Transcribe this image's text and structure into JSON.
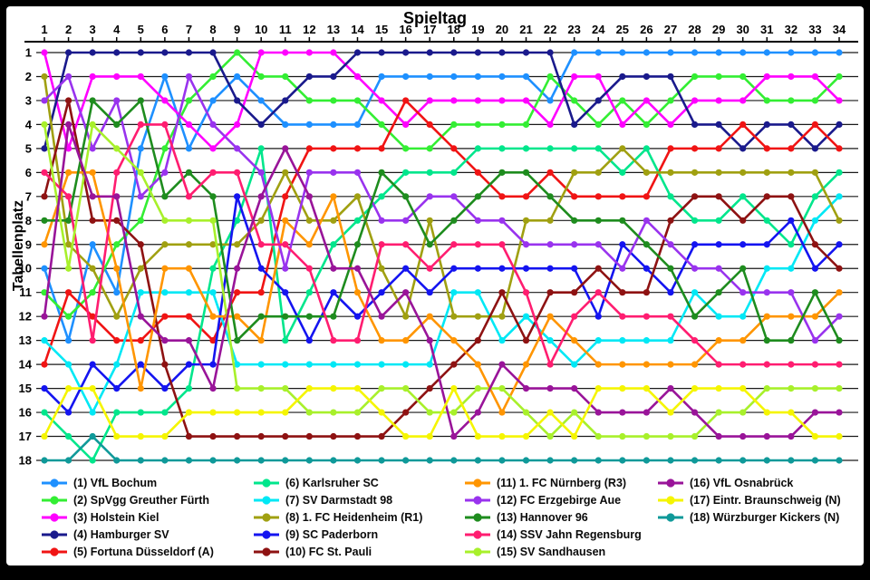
{
  "chart": {
    "title": "Spieltag",
    "ylabel": "Tabellenplatz"
  },
  "chart_data": {
    "type": "line",
    "subtype": "bump-chart",
    "title": "Spieltag",
    "xlabel": "Spieltag",
    "ylabel": "Tabellenplatz",
    "x": [
      1,
      2,
      3,
      4,
      5,
      6,
      7,
      8,
      9,
      10,
      11,
      12,
      13,
      14,
      15,
      16,
      17,
      18,
      19,
      20,
      21,
      22,
      23,
      24,
      25,
      26,
      27,
      28,
      29,
      30,
      31,
      32,
      33,
      34
    ],
    "y_ticks": [
      1,
      2,
      3,
      4,
      5,
      6,
      7,
      8,
      9,
      10,
      11,
      12,
      13,
      14,
      15,
      16,
      17,
      18
    ],
    "ylim": [
      1,
      18
    ],
    "y_inverted": true,
    "grid": "horizontal",
    "x_axis_position": "top",
    "legend_position": "bottom",
    "legend_columns": 4,
    "series": [
      {
        "name": "(1) VfL Bochum",
        "color": "#1E90FF",
        "values": [
          10,
          13,
          9,
          11,
          5,
          2,
          5,
          3,
          2,
          3,
          4,
          4,
          4,
          4,
          2,
          2,
          2,
          2,
          2,
          2,
          2,
          3,
          1,
          1,
          1,
          1,
          1,
          1,
          1,
          1,
          1,
          1,
          1,
          1
        ]
      },
      {
        "name": "(2) SpVgg Greuther Fürth",
        "color": "#33EE33",
        "values": [
          11,
          12,
          11,
          9,
          8,
          5,
          3,
          2,
          1,
          2,
          2,
          3,
          3,
          3,
          4,
          5,
          5,
          4,
          4,
          4,
          4,
          2,
          3,
          4,
          3,
          4,
          3,
          2,
          2,
          2,
          3,
          3,
          3,
          2
        ]
      },
      {
        "name": "(3) Holstein Kiel",
        "color": "#FF00FF",
        "values": [
          1,
          5,
          2,
          2,
          2,
          3,
          4,
          5,
          4,
          1,
          1,
          1,
          1,
          2,
          3,
          4,
          3,
          3,
          3,
          3,
          3,
          4,
          2,
          2,
          4,
          3,
          4,
          3,
          3,
          3,
          2,
          2,
          2,
          3
        ]
      },
      {
        "name": "(4) Hamburger SV",
        "color": "#1A1A8C",
        "values": [
          5,
          1,
          1,
          1,
          1,
          1,
          1,
          1,
          3,
          4,
          3,
          2,
          2,
          1,
          1,
          1,
          1,
          1,
          1,
          1,
          1,
          1,
          4,
          3,
          2,
          2,
          2,
          4,
          4,
          5,
          4,
          4,
          5,
          4
        ]
      },
      {
        "name": "(5) Fortuna Düsseldorf (A)",
        "color": "#F01414",
        "values": [
          14,
          11,
          12,
          13,
          13,
          12,
          12,
          13,
          11,
          11,
          7,
          5,
          5,
          5,
          5,
          3,
          4,
          5,
          6,
          7,
          7,
          6,
          7,
          7,
          7,
          7,
          5,
          5,
          5,
          4,
          5,
          5,
          4,
          5
        ]
      },
      {
        "name": "(6) Karlsruher SC",
        "color": "#00E68C",
        "values": [
          16,
          17,
          18,
          16,
          16,
          16,
          15,
          10,
          8,
          5,
          13,
          11,
          9,
          8,
          7,
          6,
          6,
          6,
          5,
          5,
          5,
          5,
          5,
          5,
          6,
          5,
          7,
          8,
          8,
          7,
          8,
          9,
          7,
          6
        ]
      },
      {
        "name": "(7) SV Darmstadt 98",
        "color": "#00E8F5",
        "values": [
          13,
          14,
          16,
          14,
          11,
          11,
          11,
          11,
          14,
          14,
          14,
          14,
          14,
          14,
          14,
          14,
          14,
          11,
          11,
          13,
          12,
          13,
          14,
          13,
          13,
          13,
          13,
          11,
          12,
          12,
          10,
          10,
          8,
          7
        ]
      },
      {
        "name": "(8) 1. FC Heidenheim (R1)",
        "color": "#A0A011",
        "values": [
          2,
          9,
          10,
          12,
          10,
          9,
          9,
          9,
          9,
          8,
          6,
          8,
          8,
          7,
          10,
          12,
          8,
          12,
          12,
          12,
          8,
          8,
          6,
          6,
          5,
          6,
          6,
          6,
          6,
          6,
          6,
          6,
          6,
          8
        ]
      },
      {
        "name": "(9) SC Paderborn",
        "color": "#1414F0",
        "values": [
          15,
          16,
          14,
          15,
          14,
          15,
          14,
          14,
          7,
          10,
          11,
          13,
          11,
          12,
          11,
          10,
          11,
          10,
          10,
          10,
          10,
          10,
          10,
          12,
          9,
          10,
          11,
          9,
          9,
          9,
          9,
          8,
          10,
          9
        ]
      },
      {
        "name": "(10) FC St. Pauli",
        "color": "#8E1212",
        "values": [
          7,
          3,
          8,
          8,
          9,
          14,
          17,
          17,
          17,
          17,
          17,
          17,
          17,
          17,
          17,
          16,
          15,
          14,
          13,
          11,
          13,
          11,
          11,
          10,
          11,
          11,
          8,
          7,
          7,
          8,
          7,
          7,
          9,
          10
        ]
      },
      {
        "name": "(11) 1. FC Nürnberg (R3)",
        "color": "#FF9500",
        "values": [
          9,
          6,
          6,
          10,
          15,
          10,
          10,
          12,
          12,
          13,
          8,
          9,
          7,
          11,
          13,
          13,
          12,
          13,
          14,
          16,
          14,
          12,
          13,
          14,
          14,
          14,
          14,
          14,
          13,
          13,
          12,
          12,
          12,
          11
        ]
      },
      {
        "name": "(12) FC Erzgebirge Aue",
        "color": "#9933EE",
        "values": [
          3,
          2,
          5,
          3,
          7,
          6,
          2,
          4,
          5,
          6,
          10,
          6,
          6,
          6,
          8,
          8,
          7,
          7,
          8,
          8,
          9,
          9,
          9,
          9,
          10,
          8,
          9,
          10,
          10,
          11,
          11,
          11,
          13,
          12
        ]
      },
      {
        "name": "(13) Hannover 96",
        "color": "#1E8C1E",
        "values": [
          8,
          8,
          3,
          4,
          3,
          7,
          6,
          7,
          13,
          12,
          12,
          12,
          12,
          9,
          6,
          7,
          9,
          8,
          7,
          6,
          6,
          7,
          8,
          8,
          8,
          9,
          10,
          12,
          11,
          10,
          13,
          13,
          11,
          13
        ]
      },
      {
        "name": "(14) SSV Jahn Regensburg",
        "color": "#FF1D70",
        "values": [
          6,
          7,
          13,
          6,
          4,
          4,
          7,
          6,
          6,
          9,
          9,
          10,
          13,
          13,
          9,
          9,
          10,
          9,
          9,
          9,
          11,
          14,
          12,
          11,
          12,
          12,
          12,
          13,
          14,
          14,
          14,
          14,
          14,
          14
        ]
      },
      {
        "name": "(15) SV Sandhausen",
        "color": "#A8F02B",
        "values": [
          4,
          10,
          4,
          5,
          6,
          8,
          8,
          8,
          15,
          15,
          15,
          16,
          16,
          16,
          15,
          15,
          16,
          16,
          15,
          15,
          16,
          17,
          16,
          17,
          17,
          17,
          17,
          17,
          16,
          16,
          15,
          15,
          15,
          15
        ]
      },
      {
        "name": "(16) VfL Osnabrück",
        "color": "#991499",
        "values": [
          12,
          4,
          7,
          7,
          12,
          13,
          13,
          15,
          10,
          7,
          5,
          7,
          10,
          10,
          12,
          11,
          13,
          17,
          16,
          14,
          15,
          15,
          15,
          16,
          16,
          16,
          15,
          16,
          17,
          17,
          17,
          17,
          16,
          16
        ]
      },
      {
        "name": "(17) Eintr. Braunschweig (N)",
        "color": "#F5F500",
        "values": [
          17,
          15,
          15,
          17,
          17,
          17,
          16,
          16,
          16,
          16,
          16,
          15,
          15,
          15,
          16,
          17,
          17,
          15,
          17,
          17,
          17,
          16,
          17,
          15,
          15,
          15,
          16,
          15,
          15,
          15,
          16,
          16,
          17,
          17
        ]
      },
      {
        "name": "(18) Würzburger Kickers (N)",
        "color": "#0F9999",
        "values": [
          18,
          18,
          17,
          18,
          18,
          18,
          18,
          18,
          18,
          18,
          18,
          18,
          18,
          18,
          18,
          18,
          18,
          18,
          18,
          18,
          18,
          18,
          18,
          18,
          18,
          18,
          18,
          18,
          18,
          18,
          18,
          18,
          18,
          18
        ]
      }
    ]
  }
}
